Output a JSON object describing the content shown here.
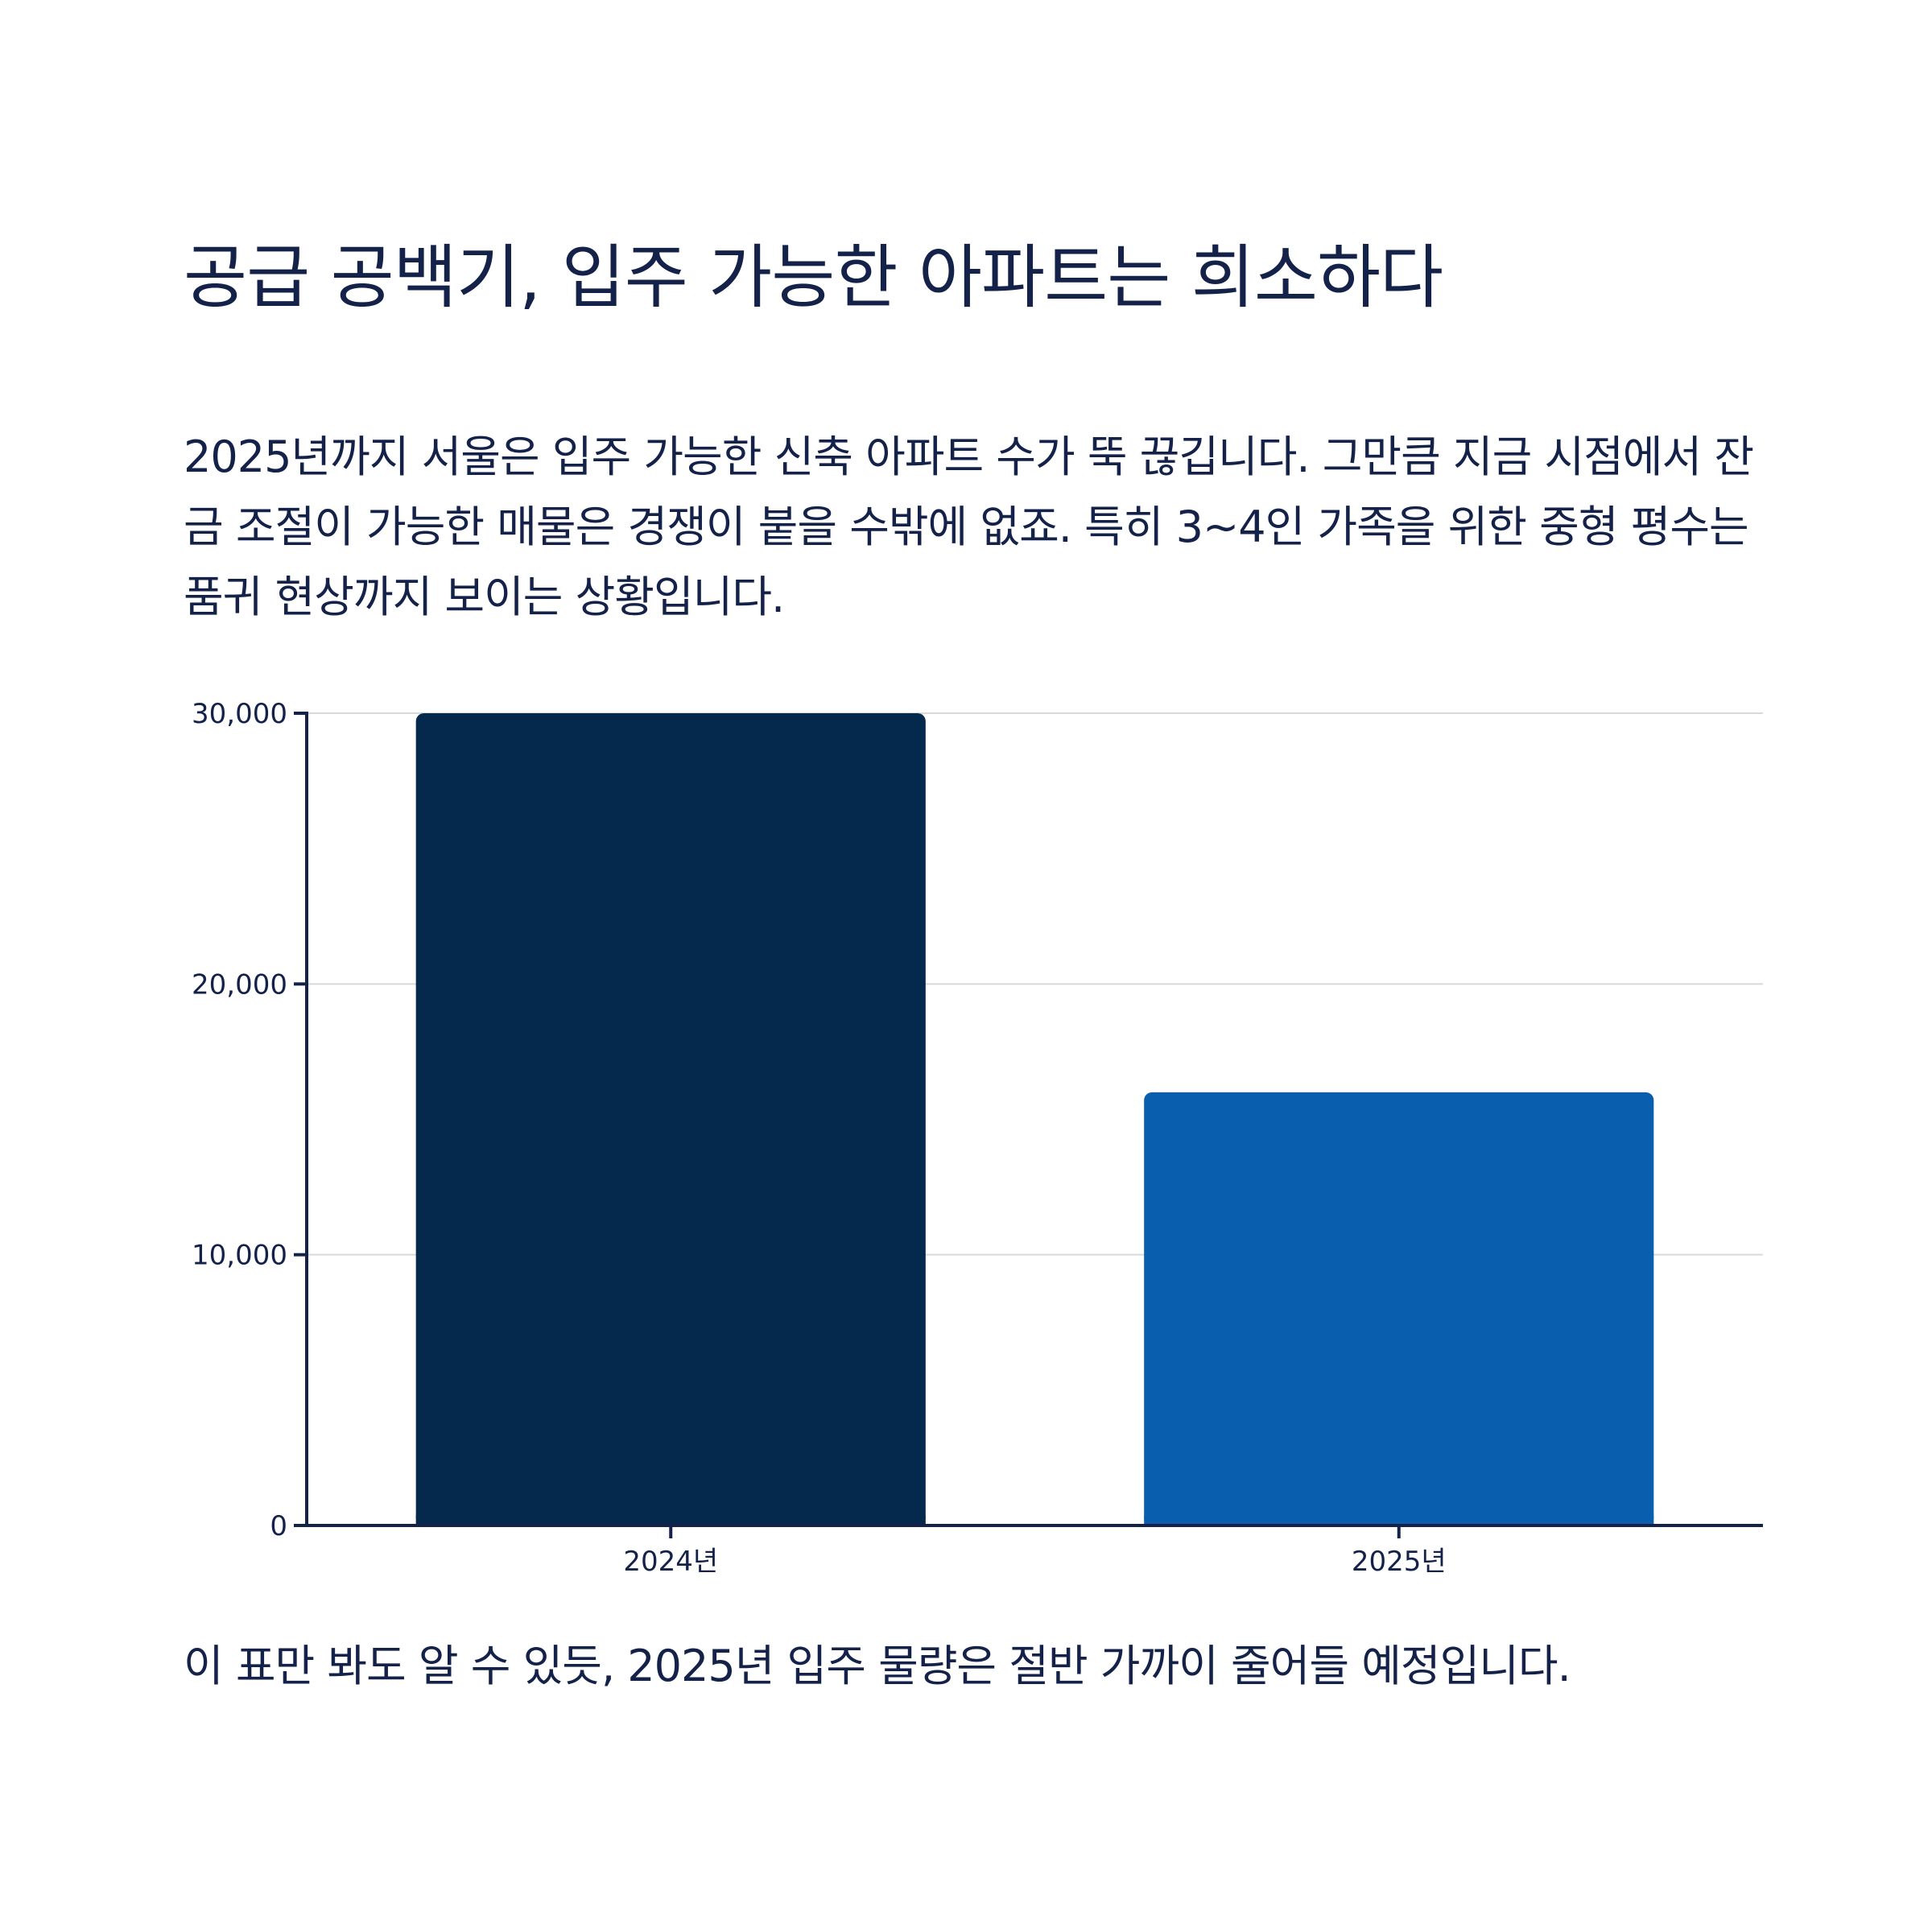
{
  "title": "공급 공백기, 입주 가능한 아파트는 희소하다",
  "intro": "2025년까지 서울은 입주 가능한 신축 아파트 수가 뚝 끊깁니다. 그만큼 지금 시점에서 잔금 조절이 가능한 매물은 경쟁이 붙을 수밖에 없죠. 특히 3~4인 가족을 위한 중형 평수는 품귀 현상까지 보이는 상황입니다.",
  "footer": "이 표만 봐도 알 수 있듯, 2025년 입주 물량은 절반 가까이 줄어들 예정입니다.",
  "colors": {
    "text": "#14224a",
    "grid": "#d9d9d9",
    "axis": "#14224a"
  },
  "chart_data": {
    "type": "bar",
    "categories": [
      "2024년",
      "2025년"
    ],
    "values": [
      30000,
      16000
    ],
    "bar_colors": [
      "#05294d",
      "#095eae"
    ],
    "title": "",
    "xlabel": "",
    "ylabel": "",
    "ylim": [
      0,
      30000
    ],
    "yticks": [
      0,
      10000,
      20000,
      30000
    ],
    "ytick_labels": [
      "0",
      "10,000",
      "20,000",
      "30,000"
    ],
    "grid": true,
    "legend": "none"
  }
}
